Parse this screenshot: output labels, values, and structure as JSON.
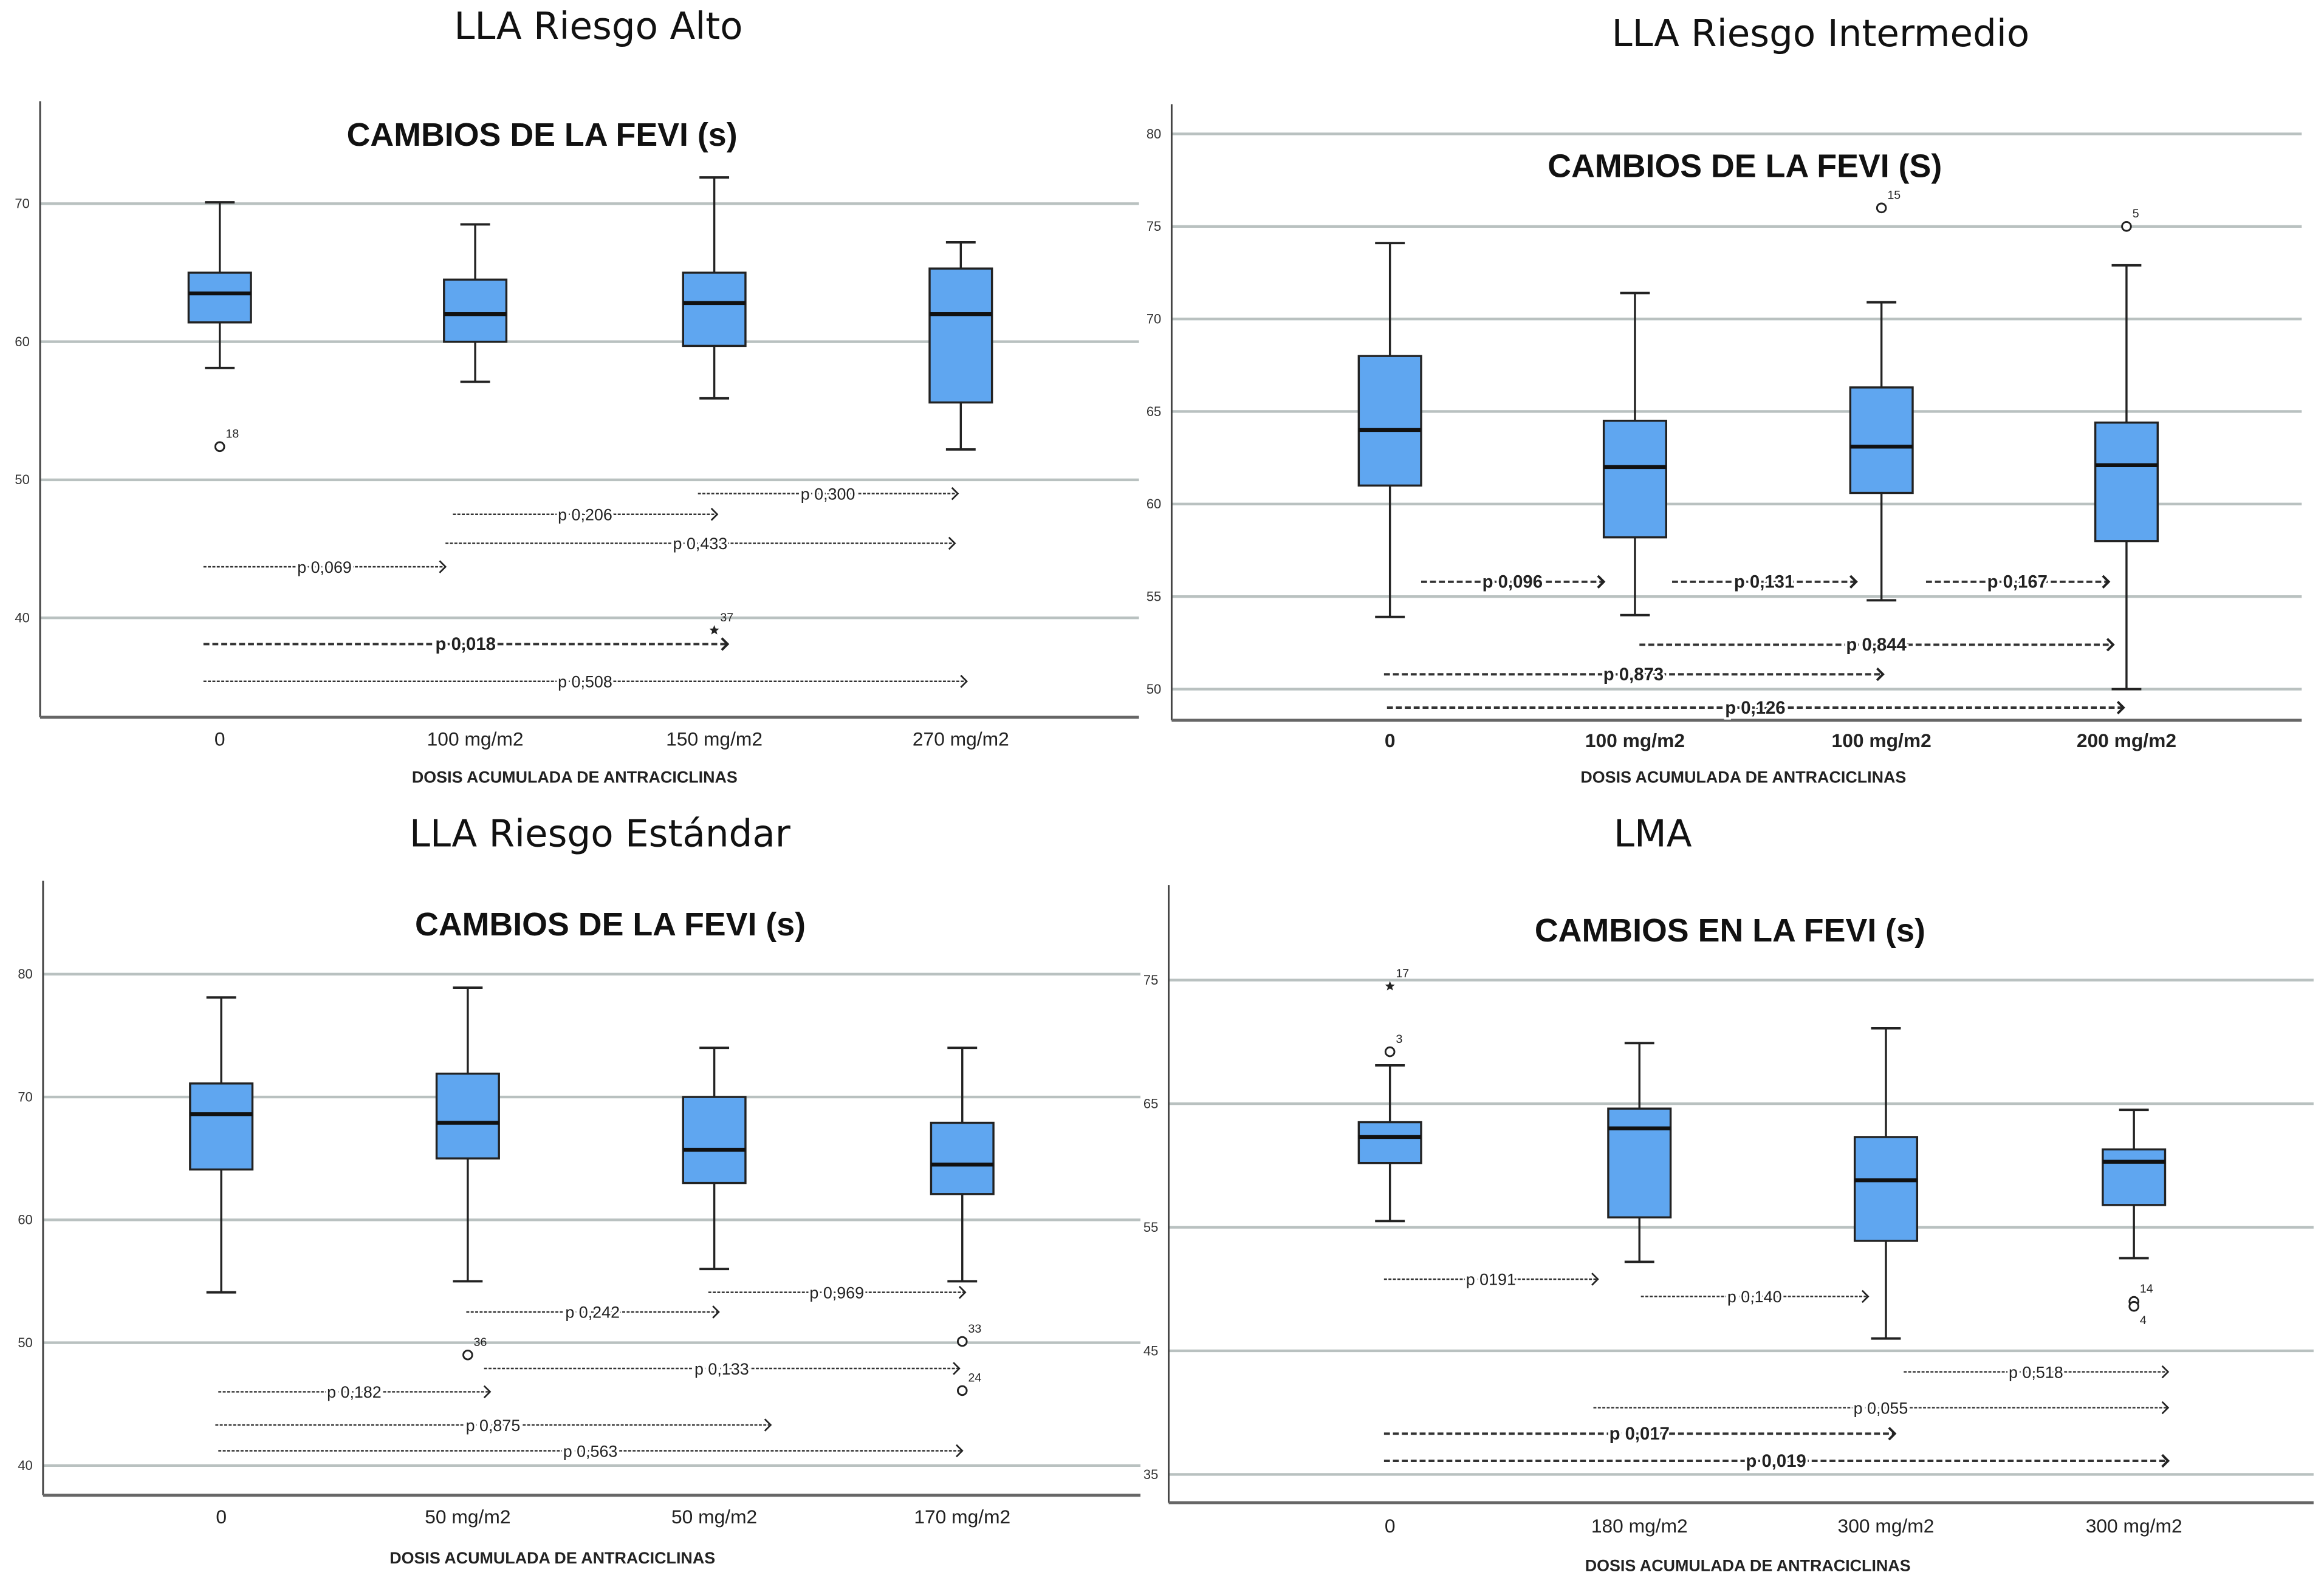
{
  "colors": {
    "box": "#5fa6f0",
    "grid": "#b9c1c0",
    "axis": "#444444"
  },
  "chart_data": [
    {
      "type": "box",
      "panel_title": "LLA Riesgo Alto",
      "title": "CAMBIOS DE LA FEVI (s)",
      "xlabel": "DOSIS ACUMULADA DE ANTRACICLINAS",
      "categories": [
        "0",
        "100 mg/m2",
        "150 mg/m2",
        "270 mg/m2"
      ],
      "yticks": [
        40,
        50,
        60,
        70
      ],
      "ylim": [
        33,
        77
      ],
      "grid": true,
      "boxes": [
        {
          "whislo": 58.1,
          "q1": 61.4,
          "med": 63.5,
          "q3": 65.0,
          "whishi": 70.1,
          "outliers": [
            {
              "y": 52.4,
              "label": "18",
              "marker": "circle"
            }
          ]
        },
        {
          "whislo": 57.1,
          "q1": 60.0,
          "med": 62.0,
          "q3": 64.5,
          "whishi": 68.5,
          "outliers": []
        },
        {
          "whislo": 55.9,
          "q1": 59.7,
          "med": 62.8,
          "q3": 65.0,
          "whishi": 71.9,
          "outliers": [
            {
              "y": 39.1,
              "label": "37",
              "marker": "star"
            }
          ]
        },
        {
          "whislo": 52.2,
          "q1": 55.6,
          "med": 62.0,
          "q3": 65.3,
          "whishi": 67.2,
          "outliers": []
        }
      ],
      "annotations": [
        {
          "label": "p 0,300",
          "y": 49.0,
          "bold": false
        },
        {
          "label": "p 0,206",
          "y": 47.5,
          "bold": false
        },
        {
          "label": "p 0,433",
          "y": 45.4,
          "bold": false
        },
        {
          "label": "p 0,069",
          "y": 43.7,
          "bold": false
        },
        {
          "label": "p 0,018",
          "y": 38.1,
          "bold": true
        },
        {
          "label": "p 0,508",
          "y": 35.4,
          "bold": false
        }
      ]
    },
    {
      "type": "box",
      "panel_title": "LLA Riesgo Intermedio",
      "title": "CAMBIOS DE LA FEVI (S)",
      "xlabel": "DOSIS ACUMULADA DE ANTRACICLINAS",
      "categories": [
        "0",
        "100 mg/m2",
        "100 mg/m2",
        "200 mg/m2"
      ],
      "yticks": [
        50,
        55,
        60,
        65,
        70,
        75,
        80
      ],
      "ylim": [
        48,
        81.5
      ],
      "grid": true,
      "boxes": [
        {
          "whislo": 53.9,
          "q1": 61.0,
          "med": 64.0,
          "q3": 68.0,
          "whishi": 74.1,
          "outliers": []
        },
        {
          "whislo": 54.0,
          "q1": 58.2,
          "med": 62.0,
          "q3": 64.5,
          "whishi": 71.4,
          "outliers": []
        },
        {
          "whislo": 54.8,
          "q1": 60.6,
          "med": 63.1,
          "q3": 66.3,
          "whishi": 70.9,
          "outliers": [
            {
              "y": 76.0,
              "label": "15",
              "marker": "circle"
            }
          ]
        },
        {
          "whislo": 50.0,
          "q1": 58.0,
          "med": 62.1,
          "q3": 64.4,
          "whishi": 72.9,
          "outliers": [
            {
              "y": 75.0,
              "label": "5",
              "marker": "circle"
            }
          ]
        }
      ],
      "annotations": [
        {
          "label": "p 0,096",
          "y": 55.8,
          "bold": true
        },
        {
          "label": "p 0,131",
          "y": 55.8,
          "bold": true
        },
        {
          "label": "p 0,167",
          "y": 55.8,
          "bold": true
        },
        {
          "label": "p 0,844",
          "y": 52.4,
          "bold": true
        },
        {
          "label": "p 0,873",
          "y": 50.8,
          "bold": true
        },
        {
          "label": "p 0,126",
          "y": 49.0,
          "bold": true
        }
      ]
    },
    {
      "type": "box",
      "panel_title": "LLA Riesgo Estándar",
      "title": "CAMBIOS DE LA FEVI (s)",
      "xlabel": "DOSIS ACUMULADA DE ANTRACICLINAS",
      "categories": [
        "0",
        "50 mg/m2",
        "50 mg/m2",
        "170 mg/m2"
      ],
      "yticks": [
        40,
        50,
        60,
        70,
        80
      ],
      "ylim": [
        37.5,
        87.5
      ],
      "grid": true,
      "boxes": [
        {
          "whislo": 54.1,
          "q1": 64.1,
          "med": 68.6,
          "q3": 71.1,
          "whishi": 78.1,
          "outliers": []
        },
        {
          "whislo": 55.0,
          "q1": 65.0,
          "med": 67.9,
          "q3": 71.9,
          "whishi": 78.9,
          "outliers": [
            {
              "y": 49.0,
              "label": "36",
              "marker": "circle"
            }
          ]
        },
        {
          "whislo": 56.0,
          "q1": 63.0,
          "med": 65.7,
          "q3": 70.0,
          "whishi": 74.0,
          "outliers": []
        },
        {
          "whislo": 55.0,
          "q1": 62.1,
          "med": 64.5,
          "q3": 67.9,
          "whishi": 74.0,
          "outliers": [
            {
              "y": 50.1,
              "label": "33",
              "marker": "circle"
            },
            {
              "y": 46.1,
              "label": "24",
              "marker": "circle"
            }
          ]
        }
      ],
      "annotations": [
        {
          "label": "p 0,969",
          "y": 54.1,
          "bold": false
        },
        {
          "label": "p 0,242",
          "y": 52.5,
          "bold": false
        },
        {
          "label": "p 0,133",
          "y": 47.9,
          "bold": false
        },
        {
          "label": "p 0,182",
          "y": 46.0,
          "bold": false
        },
        {
          "label": "p 0,875",
          "y": 43.3,
          "bold": false
        },
        {
          "label": "p 0,563",
          "y": 41.2,
          "bold": false
        }
      ]
    },
    {
      "type": "box",
      "panel_title": "LMA",
      "title": "CAMBIOS EN LA FEVI (s)",
      "xlabel": "DOSIS ACUMULADA DE ANTRACICLINAS",
      "categories": [
        "0",
        "180 mg/m2",
        "300 mg/m2",
        "300 mg/m2"
      ],
      "yticks": [
        35,
        45,
        55,
        65,
        75
      ],
      "ylim": [
        33,
        83
      ],
      "grid": true,
      "boxes": [
        {
          "whislo": 55.5,
          "q1": 60.2,
          "med": 62.3,
          "q3": 63.5,
          "whishi": 68.1,
          "outliers": [
            {
              "y": 69.2,
              "label": "3",
              "marker": "circle"
            },
            {
              "y": 74.5,
              "label": "17",
              "marker": "star"
            }
          ]
        },
        {
          "whislo": 52.2,
          "q1": 55.8,
          "med": 63.0,
          "q3": 64.6,
          "whishi": 69.9,
          "outliers": []
        },
        {
          "whislo": 46.0,
          "q1": 53.9,
          "med": 58.8,
          "q3": 62.3,
          "whishi": 71.1,
          "outliers": []
        },
        {
          "whislo": 52.5,
          "q1": 56.8,
          "med": 60.3,
          "q3": 61.3,
          "whishi": 64.5,
          "outliers": [
            {
              "y": 49.0,
              "label": "14",
              "marker": "circle"
            },
            {
              "y": 48.6,
              "label": "4",
              "marker": "circle"
            }
          ]
        }
      ],
      "annotations": [
        {
          "label": "p 0191",
          "y": 50.8,
          "bold": false
        },
        {
          "label": "p 0,140",
          "y": 49.4,
          "bold": false
        },
        {
          "label": "p 0,518",
          "y": 43.3,
          "bold": false
        },
        {
          "label": "p 0,055",
          "y": 40.4,
          "bold": false
        },
        {
          "label": "p 0,017",
          "y": 38.3,
          "bold": true
        },
        {
          "label": "p 0,019",
          "y": 36.1,
          "bold": true
        }
      ]
    }
  ]
}
